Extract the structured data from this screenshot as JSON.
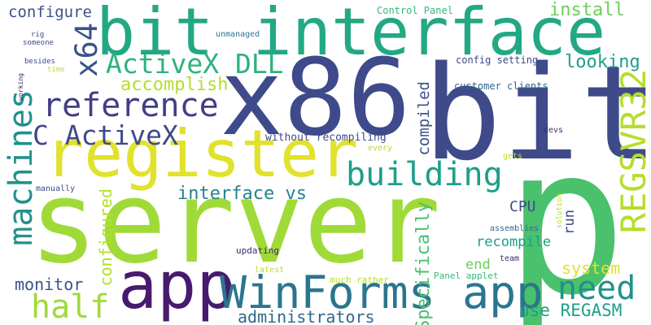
{
  "palette": {
    "dark_indigo": "#3b2a6e",
    "indigo": "#3e4a89",
    "blue": "#31668e",
    "teal": "#26828e",
    "teal_green": "#1f9e89",
    "green": "#35b779",
    "light_green": "#6ece58",
    "lime": "#b5de2b",
    "yellow": "#e1e22b"
  },
  "words": [
    "server",
    "p",
    "bit",
    "x86",
    "bit interface",
    "register",
    "app",
    "WinForms app",
    "REGSVR32",
    "reference",
    "building",
    "machines",
    "ActiveX DLL",
    "C ActiveX",
    "x64",
    "need",
    "half",
    "interface vs",
    "accomplish",
    "install",
    "looking",
    "configure",
    "monitor",
    "compiled",
    "Specifically",
    "configured",
    "administrators",
    "use REGASM",
    "system",
    "recompile",
    "CPU",
    "run",
    "end",
    "without recompiling",
    "config setting",
    "customer clients",
    "Control Panel",
    "unmanaged",
    "Panel applet",
    "much rather",
    "updating",
    "latest",
    "assemblies",
    "devs",
    "every",
    "gets",
    "team",
    "solution",
    "manually",
    "rig",
    "someone",
    "besides",
    "time",
    "working"
  ]
}
